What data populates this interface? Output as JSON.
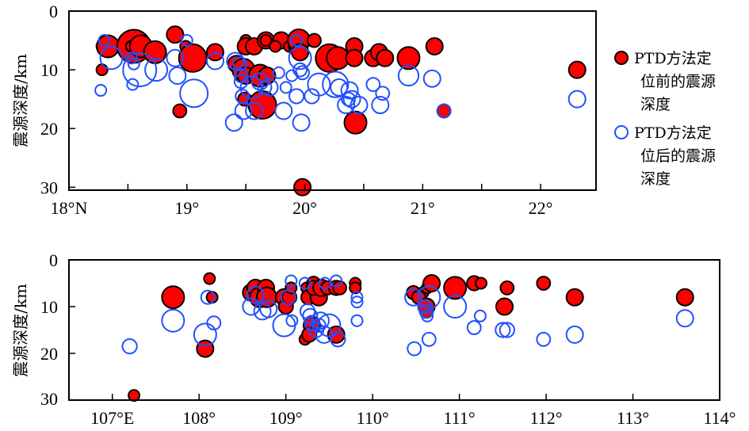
{
  "colors": {
    "before_fill": "#ff0000",
    "before_stroke": "#000000",
    "after_stroke": "#2050ff",
    "axis": "#000000"
  },
  "legend": {
    "placement": "right",
    "items": [
      {
        "name": "before",
        "lines": [
          "PTD方法定",
          "位前的震源",
          "深度"
        ]
      },
      {
        "name": "after",
        "lines": [
          "PTD方法定",
          "位后的震源",
          "深度"
        ]
      }
    ]
  },
  "chart_data": [
    {
      "type": "scatter",
      "title": "",
      "xlabel": "",
      "ylabel": "震源深度/km",
      "xlim": [
        18.0,
        22.47
      ],
      "ylim": [
        0,
        30.5
      ],
      "y_inverted": true,
      "xticks": [
        18.5,
        19,
        19.5,
        20,
        20.5,
        21,
        21.5,
        22
      ],
      "xtick_labels": [
        {
          "value": 18.0,
          "label": "18°N"
        },
        {
          "value": 19,
          "label": "19°"
        },
        {
          "value": 20,
          "label": "20°"
        },
        {
          "value": 21,
          "label": "21°"
        },
        {
          "value": 22,
          "label": "22°"
        }
      ],
      "ytick_labels": [
        {
          "value": 0,
          "label": "0"
        },
        {
          "value": 10,
          "label": "10"
        },
        {
          "value": 20,
          "label": "20"
        },
        {
          "value": 30,
          "label": "30"
        }
      ],
      "series": [
        {
          "name": "before",
          "points": [
            [
              18.28,
              6,
              1
            ],
            [
              18.33,
              6,
              2
            ],
            [
              18.28,
              10,
              1
            ],
            [
              18.55,
              6,
              3
            ],
            [
              18.53,
              6,
              1
            ],
            [
              18.61,
              6,
              2
            ],
            [
              18.73,
              7,
              2
            ],
            [
              18.9,
              4,
              1.5
            ],
            [
              18.99,
              6,
              1
            ],
            [
              19.05,
              8,
              2.5
            ],
            [
              19.24,
              7,
              1.5
            ],
            [
              19.42,
              9,
              1.5
            ],
            [
              19.48,
              10,
              2
            ],
            [
              19.5,
              5,
              1
            ],
            [
              19.5,
              6,
              1.5
            ],
            [
              19.57,
              6,
              1.5
            ],
            [
              19.5,
              11,
              1.5
            ],
            [
              19.62,
              11,
              2
            ],
            [
              19.68,
              11,
              1.5
            ],
            [
              19.49,
              15,
              1.2
            ],
            [
              19.64,
              16,
              2.5
            ],
            [
              19.67,
              5,
              1.5
            ],
            [
              19.67,
              5,
              1
            ],
            [
              19.8,
              5,
              1.5
            ],
            [
              19.75,
              6,
              1
            ],
            [
              19.87,
              6,
              1
            ],
            [
              19.91,
              6,
              1
            ],
            [
              19.94,
              6,
              1
            ],
            [
              19.95,
              5,
              2
            ],
            [
              19.96,
              7,
              1.5
            ],
            [
              20.08,
              5,
              1.2
            ],
            [
              19.98,
              30,
              1.5
            ],
            [
              20.21,
              8,
              2.5
            ],
            [
              20.28,
              8,
              2
            ],
            [
              20.42,
              6,
              1.5
            ],
            [
              20.42,
              8,
              1.5
            ],
            [
              20.58,
              8,
              1.5
            ],
            [
              20.63,
              7,
              1.5
            ],
            [
              20.68,
              8,
              1.5
            ],
            [
              20.88,
              8,
              2
            ],
            [
              21.1,
              6,
              1.5
            ],
            [
              21.18,
              17,
              1.2
            ],
            [
              20.43,
              19,
              2
            ],
            [
              18.94,
              17,
              1.2
            ],
            [
              22.31,
              10,
              1.5
            ]
          ]
        },
        {
          "name": "after",
          "points": [
            [
              18.3,
              5,
              1
            ],
            [
              18.36,
              8,
              2
            ],
            [
              18.27,
              13.5,
              1
            ],
            [
              18.53,
              8,
              1
            ],
            [
              18.55,
              9,
              1
            ],
            [
              18.6,
              10,
              3
            ],
            [
              18.74,
              10,
              2
            ],
            [
              18.54,
              12.5,
              1
            ],
            [
              18.9,
              8,
              1.5
            ],
            [
              19.0,
              5,
              1
            ],
            [
              18.92,
              11,
              1.5
            ],
            [
              19.06,
              14,
              2.5
            ],
            [
              19.24,
              8.5,
              1.5
            ],
            [
              19.41,
              8.5,
              1.5
            ],
            [
              19.45,
              9,
              1.2
            ],
            [
              19.46,
              11,
              1.2
            ],
            [
              19.46,
              12,
              1.2
            ],
            [
              19.55,
              13,
              2
            ],
            [
              19.62,
              12,
              1.5
            ],
            [
              19.66,
              13,
              1.2
            ],
            [
              19.7,
              13,
              1.5
            ],
            [
              19.47,
              14.5,
              1.2
            ],
            [
              19.48,
              17,
              1.5
            ],
            [
              19.57,
              17,
              1.5
            ],
            [
              19.4,
              19,
              1.5
            ],
            [
              19.78,
              10.5,
              1
            ],
            [
              19.89,
              11,
              1
            ],
            [
              19.84,
              13,
              1
            ],
            [
              19.82,
              17,
              1.5
            ],
            [
              19.93,
              5,
              1
            ],
            [
              19.96,
              8,
              2
            ],
            [
              19.96,
              10,
              1.2
            ],
            [
              19.98,
              10.5,
              1.2
            ],
            [
              19.93,
              14.5,
              1.3
            ],
            [
              20.06,
              14.5,
              1.3
            ],
            [
              19.97,
              19,
              1.5
            ],
            [
              20.12,
              12.5,
              2
            ],
            [
              20.26,
              12.5,
              2.3
            ],
            [
              20.29,
              13,
              1.5
            ],
            [
              20.38,
              13.5,
              1.5
            ],
            [
              20.37,
              15,
              1.2
            ],
            [
              20.35,
              16,
              1.5
            ],
            [
              20.46,
              16,
              1.5
            ],
            [
              20.4,
              15,
              1.5
            ],
            [
              20.58,
              12.5,
              1.2
            ],
            [
              20.66,
              14,
              1.2
            ],
            [
              20.64,
              16,
              1.5
            ],
            [
              20.88,
              11,
              1.8
            ],
            [
              21.08,
              11.5,
              1.5
            ],
            [
              21.18,
              17,
              1.2
            ],
            [
              22.31,
              15,
              1.5
            ]
          ]
        }
      ]
    },
    {
      "type": "scatter",
      "title": "",
      "xlabel": "",
      "ylabel": "震源深度/km",
      "xlim": [
        106.5,
        114.0
      ],
      "ylim": [
        0,
        30
      ],
      "y_inverted": true,
      "xticks": [
        107,
        108,
        109,
        110,
        111,
        112,
        113
      ],
      "xtick_labels": [
        {
          "value": 107,
          "label": "107°E"
        },
        {
          "value": 108,
          "label": "108°"
        },
        {
          "value": 109,
          "label": "109°"
        },
        {
          "value": 110,
          "label": "110°"
        },
        {
          "value": 111,
          "label": "111°"
        },
        {
          "value": 112,
          "label": "112°"
        },
        {
          "value": 113,
          "label": "113°"
        },
        {
          "value": 114,
          "label": "114°"
        }
      ],
      "ytick_labels": [
        {
          "value": 0,
          "label": "0"
        },
        {
          "value": 10,
          "label": "10"
        },
        {
          "value": 20,
          "label": "20"
        },
        {
          "value": 30,
          "label": "30"
        }
      ],
      "series": [
        {
          "name": "before",
          "points": [
            [
              107.25,
              29,
              1
            ],
            [
              107.7,
              8,
              2
            ],
            [
              108.12,
              4,
              1
            ],
            [
              108.15,
              8,
              1
            ],
            [
              108.07,
              19,
              1.5
            ],
            [
              108.6,
              7,
              1.5
            ],
            [
              108.65,
              6,
              1.5
            ],
            [
              108.7,
              8,
              1.8
            ],
            [
              108.77,
              6,
              1.5
            ],
            [
              108.78,
              8,
              1.8
            ],
            [
              108.98,
              8,
              1.5
            ],
            [
              109.0,
              10,
              1.3
            ],
            [
              109.04,
              8,
              1.3
            ],
            [
              109.06,
              6,
              1
            ],
            [
              109.24,
              6,
              1
            ],
            [
              109.26,
              8,
              1.3
            ],
            [
              109.32,
              5,
              1.2
            ],
            [
              109.38,
              8,
              1.5
            ],
            [
              109.32,
              6,
              1.3
            ],
            [
              109.41,
              6,
              1.5
            ],
            [
              109.48,
              6,
              1.2
            ],
            [
              109.58,
              6,
              1.3
            ],
            [
              109.62,
              6,
              1.2
            ],
            [
              109.8,
              5,
              1
            ],
            [
              109.8,
              6,
              1
            ],
            [
              109.3,
              14,
              1.5
            ],
            [
              109.22,
              17,
              1
            ],
            [
              109.27,
              16,
              1.3
            ],
            [
              109.58,
              16,
              1.5
            ],
            [
              110.47,
              7,
              1.2
            ],
            [
              110.58,
              7,
              1
            ],
            [
              110.63,
              6,
              1
            ],
            [
              110.68,
              5,
              1.5
            ],
            [
              110.53,
              8,
              1.2
            ],
            [
              110.62,
              10,
              1.5
            ],
            [
              110.62,
              11,
              1.2
            ],
            [
              110.95,
              6,
              2
            ],
            [
              111.17,
              5,
              1.3
            ],
            [
              111.25,
              5,
              1
            ],
            [
              111.55,
              6,
              1.2
            ],
            [
              111.52,
              10,
              1.5
            ],
            [
              111.97,
              5,
              1.2
            ],
            [
              112.33,
              8,
              1.5
            ],
            [
              113.6,
              8,
              1.5
            ]
          ]
        },
        {
          "name": "after",
          "points": [
            [
              107.2,
              18.5,
              1.3
            ],
            [
              107.7,
              13,
              2
            ],
            [
              108.1,
              8,
              1.2
            ],
            [
              108.17,
              13.5,
              1.2
            ],
            [
              108.07,
              16,
              2
            ],
            [
              108.6,
              10,
              1.5
            ],
            [
              108.65,
              7.5,
              1.5
            ],
            [
              108.73,
              11,
              1.5
            ],
            [
              108.8,
              10.5,
              1.5
            ],
            [
              108.98,
              14,
              2
            ],
            [
              109.03,
              8,
              1.3
            ],
            [
              109.07,
              13,
              1
            ],
            [
              109.06,
              4.5,
              1
            ],
            [
              109.22,
              5,
              1
            ],
            [
              109.25,
              11,
              1.3
            ],
            [
              109.28,
              12,
              1.3
            ],
            [
              109.3,
              13.5,
              1.3
            ],
            [
              109.35,
              15,
              1.3
            ],
            [
              109.4,
              13,
              1.5
            ],
            [
              109.44,
              16,
              1.5
            ],
            [
              109.38,
              14,
              1.2
            ],
            [
              109.5,
              14,
              2
            ],
            [
              109.6,
              17,
              1.3
            ],
            [
              109.45,
              5,
              1
            ],
            [
              109.58,
              4.5,
              1
            ],
            [
              109.82,
              8,
              1
            ],
            [
              109.82,
              9,
              1
            ],
            [
              109.82,
              13,
              1
            ],
            [
              110.47,
              8,
              1.5
            ],
            [
              110.65,
              8,
              2
            ],
            [
              110.6,
              10,
              1.2
            ],
            [
              110.62,
              11,
              1.2
            ],
            [
              110.63,
              12,
              1
            ],
            [
              110.65,
              17,
              1.2
            ],
            [
              110.48,
              19,
              1.2
            ],
            [
              110.95,
              10,
              2
            ],
            [
              111.17,
              14.5,
              1.2
            ],
            [
              111.24,
              12,
              1
            ],
            [
              111.5,
              15,
              1.3
            ],
            [
              111.55,
              15,
              1.3
            ],
            [
              111.97,
              17,
              1.2
            ],
            [
              112.33,
              16,
              1.5
            ],
            [
              113.6,
              12.5,
              1.5
            ]
          ]
        }
      ]
    }
  ]
}
